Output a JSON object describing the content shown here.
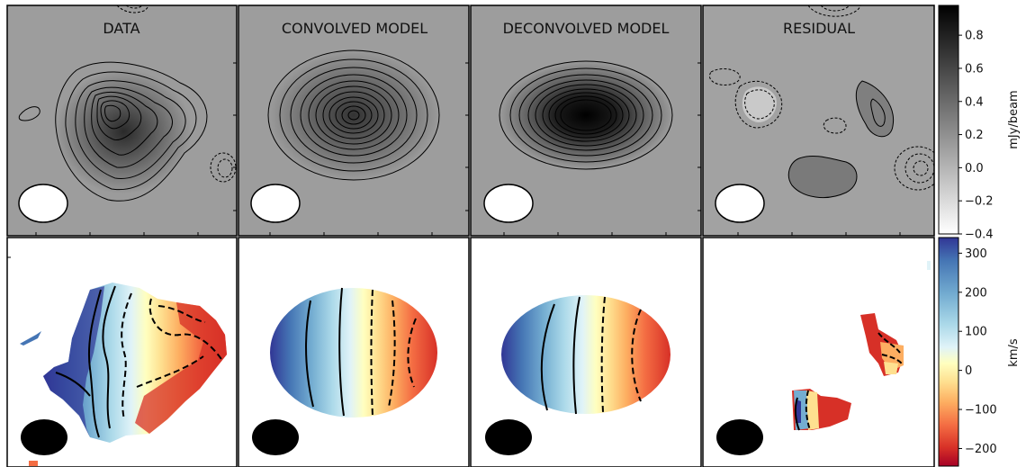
{
  "chart_data": {
    "type": "heatmap",
    "description_panels": "2x4 grid of image panels",
    "panels": [
      {
        "row": "moment0",
        "title": "DATA",
        "contours": "solid positive, dashed negative"
      },
      {
        "row": "moment0",
        "title": "CONVOLVED MODEL",
        "contours": "concentric ellipses"
      },
      {
        "row": "moment0",
        "title": "DECONVOLVED MODEL",
        "contours": "concentric ellipses"
      },
      {
        "row": "moment0",
        "title": "RESIDUAL",
        "contours": "solid positive, dashed negative"
      },
      {
        "row": "velocity",
        "title": ""
      },
      {
        "row": "velocity",
        "title": ""
      },
      {
        "row": "velocity",
        "title": ""
      },
      {
        "row": "velocity",
        "title": ""
      }
    ],
    "colorbars": [
      {
        "label": "mJy/beam",
        "colormap": "Greys",
        "ticks": [
          0.8,
          0.6,
          0.4,
          0.2,
          0.0,
          -0.2,
          -0.4
        ],
        "tick_labels": [
          "0.8",
          "0.6",
          "0.4",
          "0.2",
          "0.0",
          "−0.2",
          "−0.4"
        ],
        "vmin": -0.4,
        "vmax": 0.98
      },
      {
        "label": "km/s",
        "colormap": "RdYlBu",
        "ticks": [
          300,
          200,
          100,
          0,
          -100,
          -200
        ],
        "tick_labels": [
          "300",
          "200",
          "100",
          "0",
          "−100",
          "−200"
        ],
        "vmin": -245,
        "vmax": 340
      }
    ],
    "beam": "ellipse drawn in lower-left of each panel (white in top row, black in bottom row)"
  },
  "colors": {
    "panel_bg_top": "#9b9b9b",
    "contour": "#000000",
    "beam_top": "#ffffff",
    "beam_bottom": "#000000",
    "rdylbu": [
      "#a50026",
      "#d73027",
      "#f46d43",
      "#fdae61",
      "#fee090",
      "#ffffbf",
      "#e0f3f8",
      "#abd9e9",
      "#74add1",
      "#4575b4",
      "#313695"
    ]
  }
}
